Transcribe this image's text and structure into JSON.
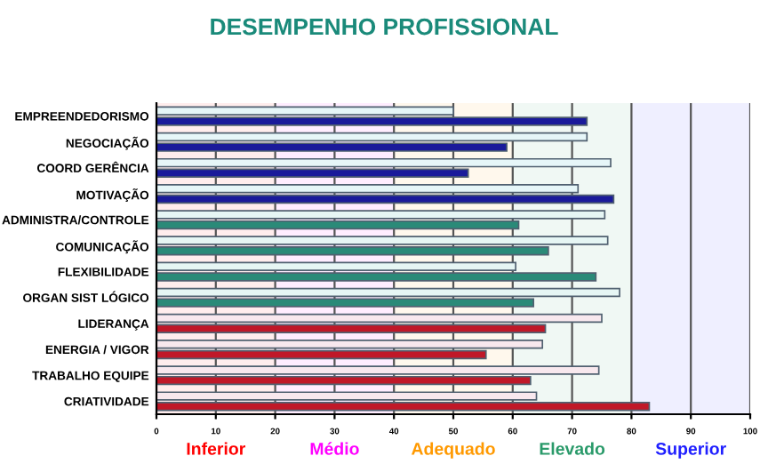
{
  "chart_data": {
    "type": "bar",
    "orientation": "horizontal",
    "title": "DESEMPENHO PROFISSIONAL",
    "categories": [
      "EMPREENDEDORISMO",
      "NEGOCIAÇÃO",
      "COORD GERÊNCIA",
      "MOTIVAÇÃO",
      "ADMINISTRA/CONTROLE",
      "COMUNICAÇÃO",
      "FLEXIBILIDADE",
      "ORGAN SIST LÓGICO",
      "LIDERANÇA",
      "ENERGIA / VIGOR",
      "TRABALHO EQUIPE",
      "CRIATIVIDADE"
    ],
    "series": [
      {
        "colors": [
          "#e6f6f8",
          "#e6f6f8",
          "#e6f6f8",
          "#e6f6f8",
          "#e6f6f4",
          "#e6f6f4",
          "#e6f6f4",
          "#e6f6f4",
          "#f8e8ee",
          "#f8e8ee",
          "#f8e8ee",
          "#f8e8ee"
        ],
        "values": [
          50,
          72.5,
          76.5,
          71,
          75.5,
          76,
          60.5,
          78,
          75,
          65,
          74.5,
          64
        ]
      },
      {
        "colors": [
          "#1a1a9a",
          "#1a1a9a",
          "#1a1a9a",
          "#1a1a9a",
          "#2a8a78",
          "#2a8a78",
          "#2a8a78",
          "#2a8a78",
          "#c01828",
          "#c01828",
          "#c01828",
          "#c01828"
        ],
        "values": [
          72.5,
          59,
          52.5,
          77,
          61,
          66,
          74,
          63.5,
          65.5,
          55.5,
          63,
          83
        ]
      }
    ],
    "xlim": [
      0,
      100
    ],
    "xticks": [
      0,
      10,
      20,
      30,
      40,
      50,
      60,
      70,
      80,
      90,
      100
    ],
    "grid": "x",
    "bands": [
      {
        "axis": "x",
        "from": 0,
        "to": 20,
        "label": "Inferior",
        "color": "#ff0000"
      },
      {
        "axis": "x",
        "from": 20,
        "to": 40,
        "label": "Médio",
        "color": "#ff00ff"
      },
      {
        "axis": "x",
        "from": 40,
        "to": 60,
        "label": "Adequado",
        "color": "#ff9900"
      },
      {
        "axis": "x",
        "from": 60,
        "to": 80,
        "label": "Elevado",
        "color": "#2a9a6a"
      },
      {
        "axis": "x",
        "from": 80,
        "to": 100,
        "label": "Superior",
        "color": "#2020ff"
      }
    ]
  }
}
